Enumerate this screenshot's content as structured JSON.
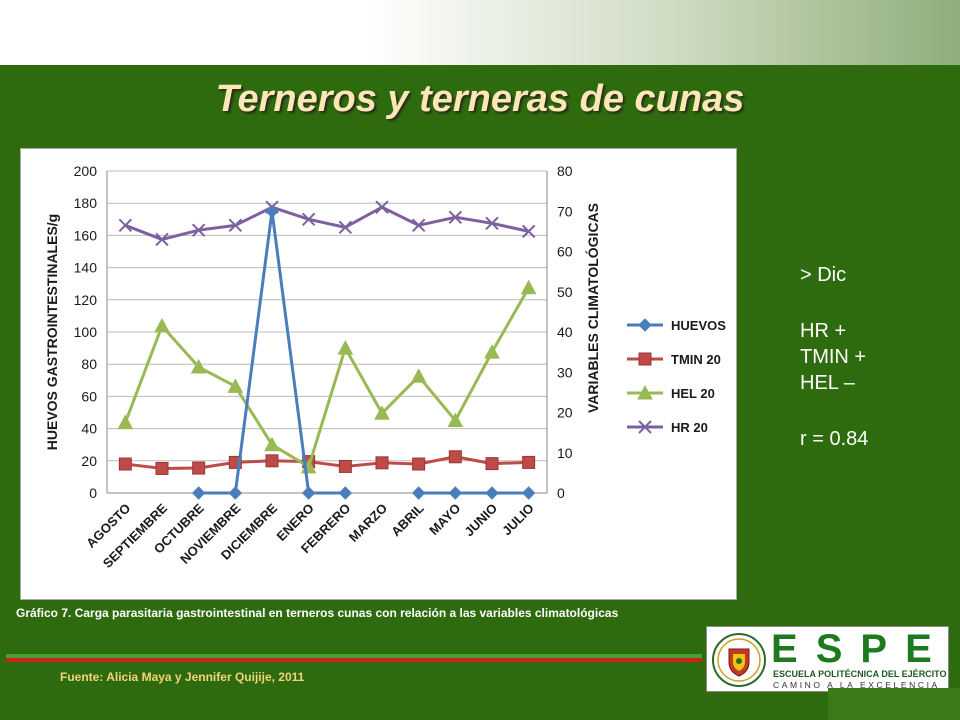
{
  "slide": {
    "title": "Terneros y terneras de cunas",
    "notes": [
      "> Dic",
      "HR +",
      "TMIN +",
      "HEL –",
      "r = 0.84"
    ],
    "caption": "Gráfico 7.  Carga parasitaria gastrointestinal en terneros cunas con relación a las variables climatológicas",
    "source": "Fuente: Alicia Maya y Jennifer Quijije, 2011"
  },
  "logo": {
    "letters": [
      "E",
      "S",
      "P",
      "E"
    ],
    "line1": "ESCUELA POLITÉCNICA DEL EJÉRCITO",
    "line2": "CAMINO A LA EXCELENCIA",
    "color": "#1e7a1e"
  },
  "chart_data": {
    "type": "line",
    "title": "",
    "ylabel": "HUEVOS GASTROINTESTINALES/g",
    "y2label": "VARIABLES CLIMATOLÓGICAS",
    "xlabel": "",
    "ylim": [
      0,
      200
    ],
    "y2lim": [
      0,
      80
    ],
    "yticks": [
      0,
      20,
      40,
      60,
      80,
      100,
      120,
      140,
      160,
      180,
      200
    ],
    "y2ticks": [
      0,
      10,
      20,
      30,
      40,
      50,
      60,
      70,
      80
    ],
    "grid": true,
    "legend_position": "right",
    "categories": [
      "AGOSTO",
      "SEPTIEMBRE",
      "OCTUBRE",
      "NOVIEMBRE",
      "DICIEMBRE",
      "ENERO",
      "FEBRERO",
      "MARZO",
      "ABRIL",
      "MAYO",
      "JUNIO",
      "JULIO"
    ],
    "series": [
      {
        "name": "HUEVOS",
        "axis": "left",
        "marker": "diamond",
        "color": "#4a7ebb",
        "values": [
          null,
          null,
          0,
          0,
          175,
          0,
          0,
          null,
          0,
          0,
          0,
          0
        ]
      },
      {
        "name": "TMIN 20",
        "axis": "right",
        "marker": "square",
        "color": "#be4b48",
        "values": [
          7.2,
          6.1,
          6.2,
          7.6,
          8.0,
          7.8,
          6.6,
          7.5,
          7.2,
          9.0,
          7.3,
          7.6
        ]
      },
      {
        "name": "HEL 20",
        "axis": "right",
        "marker": "triangle",
        "color": "#98b954",
        "values": [
          17.5,
          41.5,
          31.3,
          26.5,
          12.0,
          6.5,
          36.0,
          19.8,
          29.0,
          18.0,
          35.0,
          51.0
        ]
      },
      {
        "name": "HR 20",
        "axis": "right",
        "marker": "x",
        "color": "#7d60a0",
        "values": [
          66.5,
          63.0,
          65.3,
          66.5,
          71.0,
          68.0,
          66.0,
          71.0,
          66.5,
          68.5,
          67.0,
          65.0
        ]
      }
    ]
  }
}
